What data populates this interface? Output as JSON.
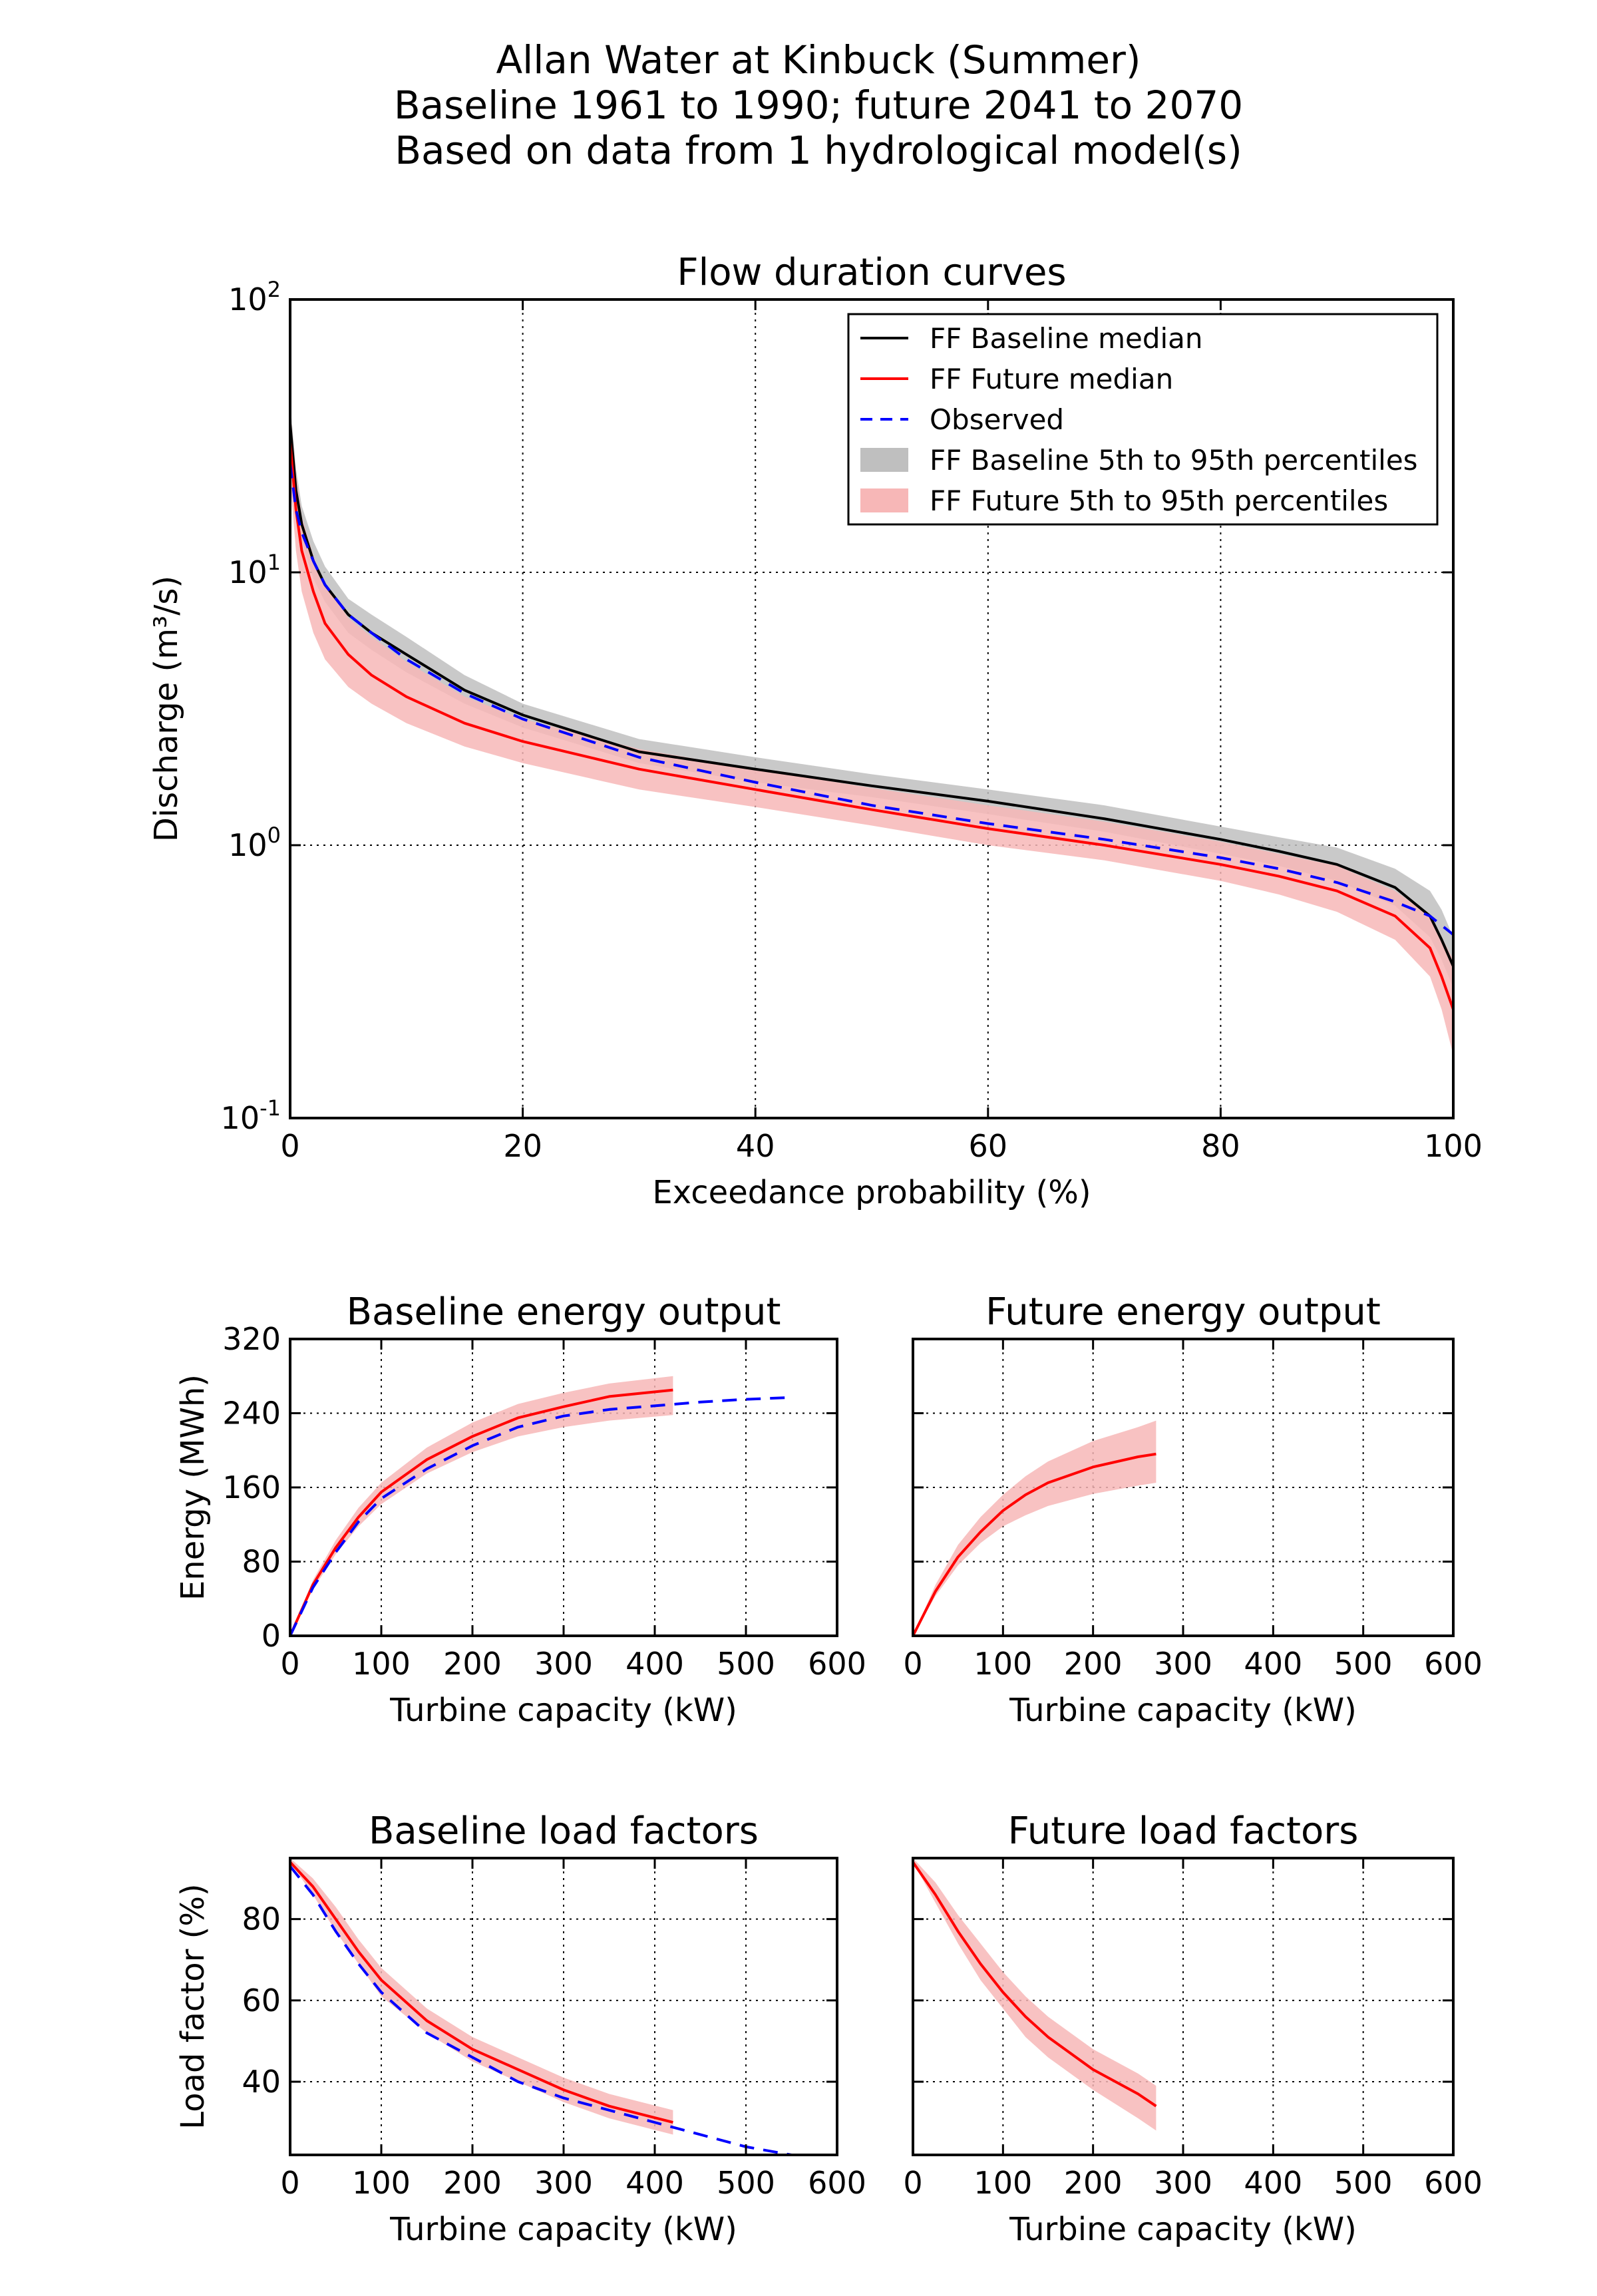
{
  "figure": {
    "title_lines": [
      "Allan Water at Kinbuck (Summer)",
      "Baseline 1961 to 1990; future 2041 to 2070",
      "Based on data from 1 hydrological model(s)"
    ]
  },
  "colors": {
    "baseline_median": "#000000",
    "future_median": "#ff0000",
    "observed": "#0000ff",
    "baseline_band": "#bfbfbf",
    "future_band": "#f7b7b7"
  },
  "chart_data": [
    {
      "id": "fdc",
      "type": "line",
      "title": "Flow duration curves",
      "xlabel": "Exceedance probability (%)",
      "ylabel": "Discharge (m³/s)",
      "yscale": "log",
      "xlim": [
        0,
        100
      ],
      "ylim": [
        0.1,
        100
      ],
      "xticks": [
        "0",
        "20",
        "40",
        "60",
        "80",
        "100"
      ],
      "yticks": [
        "10⁻¹",
        "10⁰",
        "10¹",
        "10²"
      ],
      "grid": true,
      "legend": {
        "placement": "top-right",
        "entries": [
          {
            "label": "FF Baseline median",
            "kind": "line",
            "color": "#000000"
          },
          {
            "label": "FF Future median",
            "kind": "line",
            "color": "#ff0000"
          },
          {
            "label": "Observed",
            "kind": "dashed",
            "color": "#0000ff"
          },
          {
            "label": "FF Baseline 5th to 95th percentiles",
            "kind": "patch",
            "color": "#bfbfbf"
          },
          {
            "label": "FF Future 5th to 95th percentiles",
            "kind": "patch",
            "color": "#f7b7b7"
          }
        ]
      },
      "series": [
        {
          "name": "FF Baseline median",
          "style": "solid",
          "color": "#000000",
          "x": [
            0,
            0.5,
            1,
            2,
            3,
            5,
            7,
            10,
            15,
            20,
            30,
            40,
            50,
            60,
            70,
            80,
            85,
            90,
            95,
            98,
            99,
            100
          ],
          "y": [
            35,
            20,
            15,
            11,
            9,
            7,
            6,
            5,
            3.7,
            3.0,
            2.2,
            1.9,
            1.65,
            1.45,
            1.25,
            1.05,
            0.95,
            0.85,
            0.7,
            0.55,
            0.45,
            0.36
          ]
        },
        {
          "name": "FF Future median",
          "style": "solid",
          "color": "#ff0000",
          "x": [
            0,
            0.5,
            1,
            2,
            3,
            5,
            7,
            10,
            15,
            20,
            30,
            40,
            50,
            60,
            70,
            80,
            85,
            90,
            95,
            98,
            99,
            100
          ],
          "y": [
            30,
            17,
            12,
            8.5,
            6.5,
            5,
            4.2,
            3.5,
            2.8,
            2.4,
            1.9,
            1.6,
            1.35,
            1.15,
            1.0,
            0.85,
            0.77,
            0.68,
            0.55,
            0.42,
            0.33,
            0.25
          ]
        },
        {
          "name": "Observed",
          "style": "dashed",
          "color": "#0000ff",
          "x": [
            0,
            0.5,
            1,
            2,
            3,
            5,
            7,
            10,
            15,
            20,
            30,
            40,
            50,
            60,
            70,
            80,
            85,
            90,
            95,
            98,
            100
          ],
          "y": [
            25,
            17,
            14,
            11,
            9,
            7,
            6,
            4.8,
            3.6,
            2.9,
            2.1,
            1.7,
            1.4,
            1.2,
            1.05,
            0.9,
            0.82,
            0.73,
            0.62,
            0.55,
            0.47
          ]
        }
      ],
      "bands": [
        {
          "name": "FF Baseline 5th to 95th percentiles",
          "color": "#bfbfbf",
          "x": [
            0,
            0.5,
            1,
            2,
            3,
            5,
            7,
            10,
            15,
            20,
            30,
            40,
            50,
            60,
            70,
            80,
            85,
            90,
            95,
            98,
            99,
            100
          ],
          "low": [
            30,
            17,
            13,
            9.5,
            7.8,
            6,
            5.2,
            4.3,
            3.3,
            2.7,
            2.0,
            1.7,
            1.5,
            1.3,
            1.12,
            0.93,
            0.84,
            0.74,
            0.6,
            0.46,
            0.38,
            0.3
          ],
          "high": [
            42,
            24,
            17.5,
            13,
            10.5,
            8,
            7,
            5.8,
            4.2,
            3.3,
            2.45,
            2.1,
            1.82,
            1.6,
            1.4,
            1.17,
            1.07,
            0.98,
            0.82,
            0.68,
            0.58,
            0.46
          ]
        },
        {
          "name": "FF Future 5th to 95th percentiles",
          "color": "#f7b7b7",
          "x": [
            0,
            0.5,
            1,
            2,
            3,
            5,
            7,
            10,
            15,
            20,
            30,
            40,
            50,
            60,
            70,
            80,
            85,
            90,
            95,
            98,
            99,
            100
          ],
          "low": [
            22,
            12,
            8.5,
            6,
            4.8,
            3.8,
            3.3,
            2.8,
            2.3,
            2.0,
            1.6,
            1.38,
            1.18,
            1.0,
            0.88,
            0.74,
            0.66,
            0.57,
            0.45,
            0.33,
            0.25,
            0.17
          ],
          "high": [
            40,
            23,
            16,
            11.5,
            9,
            6.8,
            5.8,
            4.7,
            3.5,
            2.9,
            2.25,
            1.9,
            1.62,
            1.4,
            1.22,
            1.03,
            0.93,
            0.84,
            0.68,
            0.55,
            0.46,
            0.38
          ]
        }
      ]
    },
    {
      "id": "baseline_energy",
      "type": "line",
      "title": "Baseline energy output",
      "xlabel": "Turbine capacity (kW)",
      "ylabel": "Energy (MWh)",
      "xlim": [
        0,
        600
      ],
      "ylim": [
        0,
        320
      ],
      "xticks": [
        "0",
        "100",
        "200",
        "300",
        "400",
        "500",
        "600"
      ],
      "yticks": [
        "0",
        "80",
        "160",
        "240",
        "320"
      ],
      "grid": true,
      "series": [
        {
          "name": "FF Future median",
          "style": "solid",
          "color": "#ff0000",
          "x": [
            0,
            25,
            50,
            75,
            100,
            150,
            200,
            250,
            300,
            350,
            420
          ],
          "y": [
            0,
            55,
            95,
            128,
            155,
            190,
            215,
            235,
            247,
            258,
            265
          ]
        },
        {
          "name": "Observed",
          "style": "dashed",
          "color": "#0000ff",
          "x": [
            0,
            25,
            50,
            75,
            100,
            150,
            200,
            250,
            300,
            350,
            400,
            450,
            500,
            550
          ],
          "y": [
            0,
            52,
            90,
            123,
            148,
            180,
            205,
            225,
            237,
            244,
            248,
            252,
            255,
            257
          ]
        }
      ],
      "bands": [
        {
          "name": "FF Future 5th to 95th percentiles",
          "color": "#f7b7b7",
          "x": [
            0,
            25,
            50,
            75,
            100,
            150,
            200,
            250,
            300,
            350,
            420
          ],
          "low": [
            0,
            50,
            88,
            118,
            142,
            175,
            198,
            215,
            225,
            232,
            238
          ],
          "high": [
            0,
            60,
            103,
            138,
            165,
            203,
            230,
            250,
            262,
            272,
            280
          ]
        }
      ]
    },
    {
      "id": "future_energy",
      "type": "line",
      "title": "Future energy output",
      "xlabel": "Turbine capacity (kW)",
      "ylabel": "",
      "xlim": [
        0,
        600
      ],
      "ylim": [
        0,
        320
      ],
      "xticks": [
        "0",
        "100",
        "200",
        "300",
        "400",
        "500",
        "600"
      ],
      "yticks": [],
      "grid": true,
      "series": [
        {
          "name": "FF Future median",
          "style": "solid",
          "color": "#ff0000",
          "x": [
            0,
            25,
            50,
            75,
            100,
            125,
            150,
            200,
            250,
            270
          ],
          "y": [
            0,
            48,
            85,
            112,
            135,
            152,
            165,
            182,
            193,
            196
          ]
        }
      ],
      "bands": [
        {
          "name": "FF Future 5th to 95th percentiles",
          "color": "#f7b7b7",
          "x": [
            0,
            25,
            50,
            75,
            100,
            125,
            150,
            200,
            250,
            270
          ],
          "low": [
            0,
            43,
            76,
            100,
            118,
            130,
            140,
            153,
            162,
            165
          ],
          "high": [
            0,
            55,
            98,
            128,
            152,
            172,
            188,
            210,
            225,
            232
          ]
        }
      ]
    },
    {
      "id": "baseline_load",
      "type": "line",
      "title": "Baseline load factors",
      "xlabel": "Turbine capacity (kW)",
      "ylabel": "Load factor (%)",
      "xlim": [
        0,
        600
      ],
      "ylim": [
        22,
        95
      ],
      "xticks": [
        "0",
        "100",
        "200",
        "300",
        "400",
        "500",
        "600"
      ],
      "yticks": [
        "40",
        "60",
        "80"
      ],
      "grid": true,
      "series": [
        {
          "name": "FF Future median",
          "style": "solid",
          "color": "#ff0000",
          "x": [
            0,
            25,
            50,
            75,
            100,
            150,
            200,
            250,
            300,
            350,
            420
          ],
          "y": [
            94,
            88,
            80,
            72,
            65,
            55,
            48,
            43,
            38,
            34,
            30
          ]
        },
        {
          "name": "Observed",
          "style": "dashed",
          "color": "#0000ff",
          "x": [
            0,
            25,
            50,
            75,
            100,
            150,
            200,
            250,
            300,
            350,
            400,
            450,
            500,
            550
          ],
          "y": [
            93,
            86,
            77,
            69,
            62,
            52,
            46,
            40,
            36,
            33,
            30,
            27,
            24,
            22
          ]
        }
      ],
      "bands": [
        {
          "name": "FF Future 5th to 95th percentiles",
          "color": "#f7b7b7",
          "x": [
            0,
            25,
            50,
            75,
            100,
            150,
            200,
            250,
            300,
            350,
            420
          ],
          "low": [
            94,
            86,
            77,
            69,
            61,
            52,
            45,
            40,
            35,
            31,
            27
          ],
          "high": [
            95,
            90,
            83,
            75,
            68,
            58,
            51,
            46,
            41,
            37,
            33
          ]
        }
      ]
    },
    {
      "id": "future_load",
      "type": "line",
      "title": "Future load factors",
      "xlabel": "Turbine capacity (kW)",
      "ylabel": "",
      "xlim": [
        0,
        600
      ],
      "ylim": [
        22,
        95
      ],
      "xticks": [
        "0",
        "100",
        "200",
        "300",
        "400",
        "500",
        "600"
      ],
      "yticks": [],
      "grid": true,
      "series": [
        {
          "name": "FF Future median",
          "style": "solid",
          "color": "#ff0000",
          "x": [
            0,
            25,
            50,
            75,
            100,
            125,
            150,
            200,
            250,
            270
          ],
          "y": [
            94,
            86,
            77,
            69,
            62,
            56,
            51,
            43,
            37,
            34
          ]
        }
      ],
      "bands": [
        {
          "name": "FF Future 5th to 95th percentiles",
          "color": "#f7b7b7",
          "x": [
            0,
            25,
            50,
            75,
            100,
            125,
            150,
            200,
            250,
            270
          ],
          "low": [
            94,
            84,
            74,
            65,
            58,
            51,
            46,
            38,
            31,
            28
          ],
          "high": [
            95,
            89,
            81,
            74,
            67,
            61,
            56,
            48,
            42,
            39
          ]
        }
      ]
    }
  ]
}
